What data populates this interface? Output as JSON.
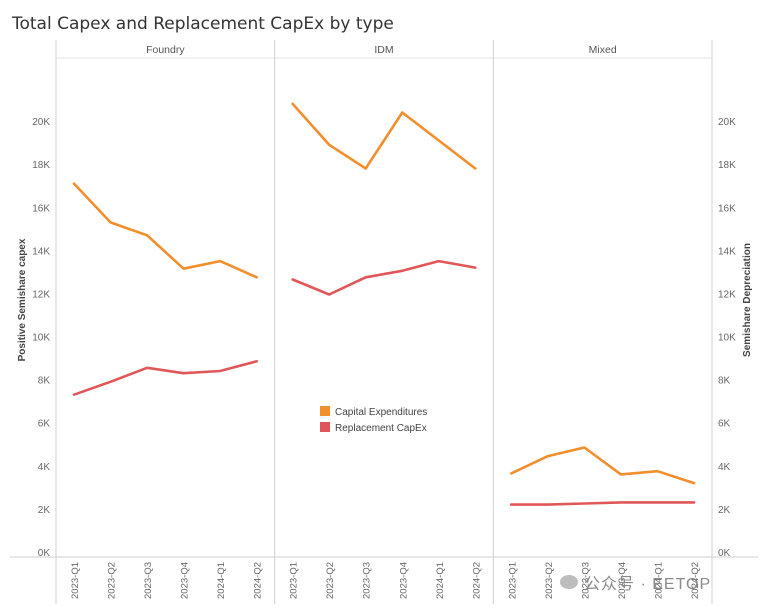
{
  "title": "Total Capex and Replacement CapEx by type",
  "watermark": "公众号 · EETOP",
  "chart_data": {
    "type": "line",
    "title": "Total Capex and Replacement CapEx by type",
    "ylabel_left": "Positive Semishare capex",
    "ylabel_right": "Semishare Depreciation",
    "ylim": [
      0,
      22000
    ],
    "yticks": [
      0,
      2000,
      4000,
      6000,
      8000,
      10000,
      12000,
      14000,
      16000,
      18000,
      20000
    ],
    "ytick_labels": [
      "0K",
      "2K",
      "4K",
      "6K",
      "8K",
      "10K",
      "12K",
      "14K",
      "16K",
      "18K",
      "20K"
    ],
    "categories": [
      "2023-Q1",
      "2023-Q2",
      "2023-Q3",
      "2023-Q4",
      "2024-Q1",
      "2024-Q2"
    ],
    "legend": {
      "placement": "center",
      "entries": [
        {
          "name": "Capital Expenditures",
          "color": "#f28e2b"
        },
        {
          "name": "Replacement CapEx",
          "color": "#e15759"
        }
      ]
    },
    "panels": [
      {
        "name": "Foundry",
        "series": [
          {
            "name": "Capital Expenditures",
            "values": [
              17100,
              15300,
              14700,
              13150,
              13500,
              12750
            ]
          },
          {
            "name": "Replacement CapEx",
            "values": [
              7300,
              7900,
              8550,
              8300,
              8400,
              8850
            ]
          }
        ]
      },
      {
        "name": "IDM",
        "series": [
          {
            "name": "Capital Expenditures",
            "values": [
              20800,
              18900,
              17800,
              20400,
              19100,
              17800
            ]
          },
          {
            "name": "Replacement CapEx",
            "values": [
              12650,
              11950,
              12750,
              13050,
              13500,
              13200
            ]
          }
        ]
      },
      {
        "name": "Mixed",
        "series": [
          {
            "name": "Capital Expenditures",
            "values": [
              3650,
              4450,
              4850,
              3600,
              3750,
              3200
            ]
          },
          {
            "name": "Replacement CapEx",
            "values": [
              2200,
              2200,
              2250,
              2300,
              2300,
              2300
            ]
          }
        ]
      }
    ]
  }
}
